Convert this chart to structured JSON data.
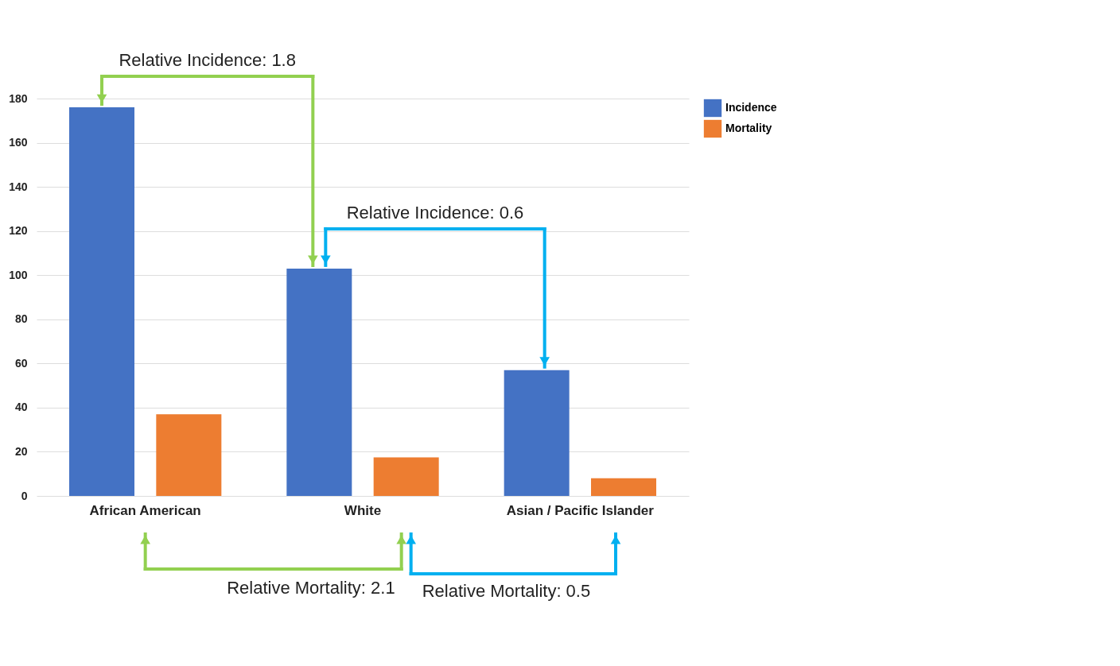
{
  "chart_data": {
    "type": "bar",
    "categories": [
      "African American",
      "White",
      "Asian / Pacific Islander"
    ],
    "series": [
      {
        "name": "Incidence",
        "color": "#4472c4",
        "values": [
          176,
          103,
          57
        ]
      },
      {
        "name": "Mortality",
        "color": "#ed7d31",
        "values": [
          37,
          17.5,
          8
        ]
      }
    ],
    "ylim": [
      0,
      180
    ],
    "yticks": [
      0,
      20,
      40,
      60,
      80,
      100,
      120,
      140,
      160,
      180
    ],
    "grid": "y",
    "legend": "right",
    "annotations": [
      "Relative Incidence: 1.8",
      "Relative Incidence: 0.6",
      "Relative Mortality: 2.1",
      "Relative Mortality: 0.5"
    ]
  }
}
